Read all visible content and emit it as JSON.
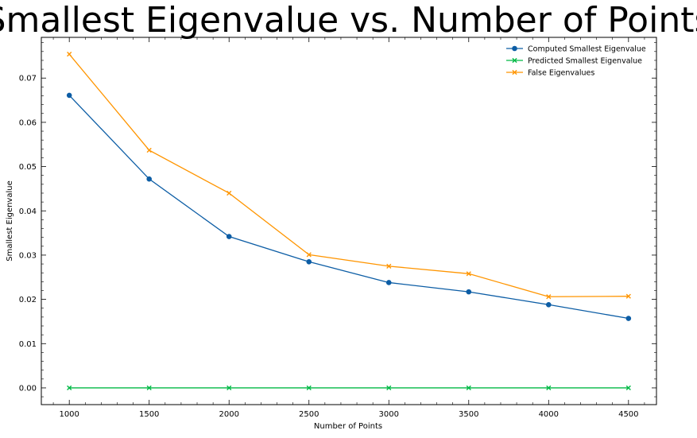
{
  "chart_data": {
    "type": "line",
    "title": "Smallest Eigenvalue vs. Number of Points",
    "xlabel": "Number of Points",
    "ylabel": "Smallest Eigenvalue",
    "x": [
      1000,
      1500,
      2000,
      2500,
      3000,
      3500,
      4000,
      4500
    ],
    "xlim": [
      825,
      4675
    ],
    "ylim": [
      -0.00378,
      0.0792
    ],
    "x_ticks": [
      1000,
      1500,
      2000,
      2500,
      3000,
      3500,
      4000,
      4500
    ],
    "x_tick_labels": [
      "1000",
      "1500",
      "2000",
      "2500",
      "3000",
      "3500",
      "4000",
      "4500"
    ],
    "y_ticks": [
      0.0,
      0.01,
      0.02,
      0.03,
      0.04,
      0.05,
      0.06,
      0.07
    ],
    "y_tick_labels": [
      "0.00",
      "0.01",
      "0.02",
      "0.03",
      "0.04",
      "0.05",
      "0.06",
      "0.07"
    ],
    "grid": false,
    "legend_position": "top-right",
    "series": [
      {
        "name": "Computed Smallest Eigenvalue",
        "color": "#0C5DA5",
        "marker": "circle",
        "values": [
          0.0661,
          0.0472,
          0.0342,
          0.0285,
          0.0238,
          0.0217,
          0.0188,
          0.0157
        ]
      },
      {
        "name": "Predicted Smallest Eigenvalue",
        "color": "#00B945",
        "marker": "x",
        "values": [
          0.0,
          0.0,
          0.0,
          0.0,
          0.0,
          0.0,
          0.0,
          0.0
        ]
      },
      {
        "name": "False Eigenvalues",
        "color": "#FF9500",
        "marker": "x",
        "values": [
          0.0754,
          0.0537,
          0.044,
          0.0301,
          0.0275,
          0.0258,
          0.0206,
          0.0207
        ]
      }
    ]
  }
}
